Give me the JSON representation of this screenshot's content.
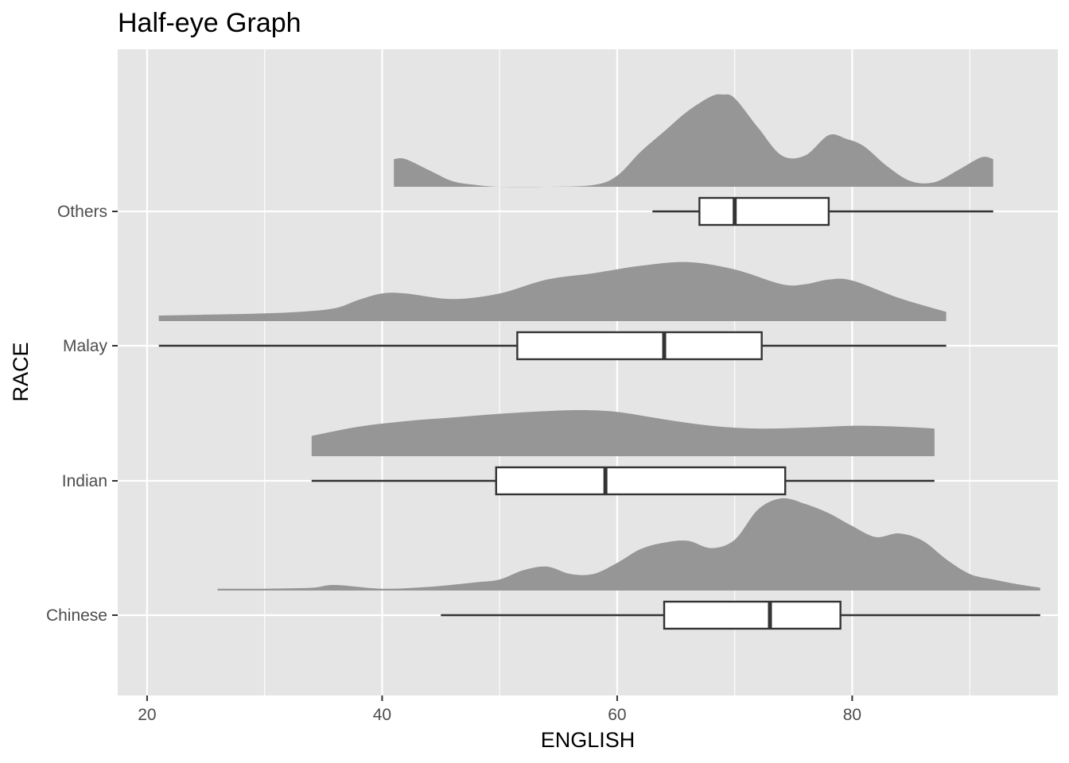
{
  "chart_data": {
    "type": "half-eye (density + boxplot)",
    "title": "Half-eye Graph",
    "xlabel": "ENGLISH",
    "ylabel": "RACE",
    "xlim": [
      17.5,
      97.5
    ],
    "x_ticks": [
      20,
      40,
      60,
      80
    ],
    "categories": [
      "Chinese",
      "Indian",
      "Malay",
      "Others"
    ],
    "grid": true,
    "legend": "none",
    "colors": {
      "panel": "#e5e5e5",
      "grid": "#ffffff",
      "density_fill": "#969696",
      "box_fill": "#ffffff",
      "box_line": "#333333",
      "tick_label": "#4d4d4d",
      "axis_tick": "#333333"
    },
    "series": [
      {
        "category": "Chinese",
        "boxplot": {
          "whisker_low": 45,
          "q1": 64,
          "median": 73,
          "q3": 79,
          "whisker_high": 96
        },
        "density": {
          "x": [
            26,
            30,
            34,
            36,
            40,
            44,
            48,
            50,
            52,
            54,
            56,
            58,
            60,
            62,
            64,
            66,
            68,
            70,
            72,
            74,
            76,
            78,
            80,
            82,
            84,
            86,
            88,
            90,
            92,
            94,
            96
          ],
          "y": [
            0.02,
            0.02,
            0.03,
            0.06,
            0.02,
            0.04,
            0.09,
            0.12,
            0.22,
            0.26,
            0.18,
            0.18,
            0.3,
            0.45,
            0.52,
            0.54,
            0.46,
            0.55,
            0.88,
            1.0,
            0.94,
            0.84,
            0.7,
            0.58,
            0.62,
            0.54,
            0.34,
            0.18,
            0.12,
            0.07,
            0.03
          ]
        }
      },
      {
        "category": "Indian",
        "boxplot": {
          "whisker_low": 34,
          "q1": 49.7,
          "median": 59,
          "q3": 74.3,
          "whisker_high": 87
        },
        "density": {
          "x": [
            34,
            38,
            42,
            46,
            50,
            54,
            57,
            60,
            64,
            68,
            72,
            76,
            80,
            84,
            87
          ],
          "y": [
            0.22,
            0.32,
            0.38,
            0.42,
            0.46,
            0.49,
            0.5,
            0.48,
            0.4,
            0.33,
            0.3,
            0.31,
            0.33,
            0.32,
            0.3
          ]
        }
      },
      {
        "category": "Malay",
        "boxplot": {
          "whisker_low": 21,
          "q1": 51.5,
          "median": 64,
          "q3": 72.3,
          "whisker_high": 88
        },
        "density": {
          "x": [
            21,
            25,
            29,
            33,
            36,
            38,
            40,
            42,
            46,
            50,
            54,
            58,
            62,
            66,
            70,
            74,
            76,
            78,
            80,
            84,
            88
          ],
          "y": [
            0.06,
            0.07,
            0.08,
            0.1,
            0.14,
            0.23,
            0.3,
            0.3,
            0.24,
            0.3,
            0.45,
            0.52,
            0.6,
            0.64,
            0.56,
            0.4,
            0.4,
            0.45,
            0.44,
            0.25,
            0.1
          ]
        }
      },
      {
        "category": "Others",
        "boxplot": {
          "whisker_low": 63,
          "q1": 67,
          "median": 70,
          "q3": 78,
          "whisker_high": 92
        },
        "density": {
          "x": [
            41,
            42,
            44,
            46,
            48,
            50,
            54,
            58,
            60,
            62,
            64,
            66,
            68,
            69,
            70,
            72,
            74,
            76,
            78,
            79.5,
            81,
            83,
            85,
            87,
            89,
            91,
            92
          ],
          "y": [
            0.3,
            0.3,
            0.18,
            0.06,
            0.02,
            0.0,
            0.0,
            0.02,
            0.12,
            0.38,
            0.6,
            0.82,
            0.98,
            1.0,
            0.96,
            0.64,
            0.34,
            0.34,
            0.56,
            0.52,
            0.44,
            0.22,
            0.06,
            0.05,
            0.18,
            0.32,
            0.3
          ]
        }
      }
    ]
  }
}
